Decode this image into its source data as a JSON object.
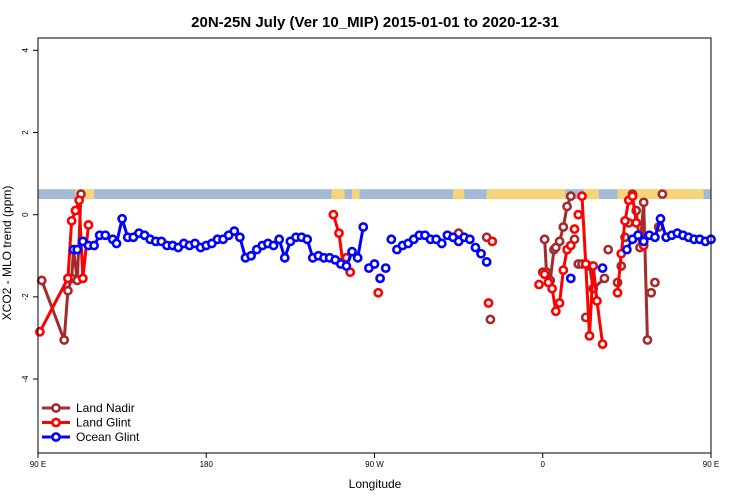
{
  "chart_data": {
    "type": "line",
    "title": "20N-25N July (Ver 10_MIP)   2015-01-01 to 2020-12-31",
    "xlabel": "Longitude",
    "ylabel": "XCO2 - MLO trend (ppm)",
    "xlim": [
      90,
      450
    ],
    "ylim": [
      -5.8,
      4.3
    ],
    "x_ticks": [
      {
        "value": 90,
        "label": "90 E"
      },
      {
        "value": 180,
        "label": "180"
      },
      {
        "value": 270,
        "label": "90 W"
      },
      {
        "value": 360,
        "label": "0"
      },
      {
        "value": 450,
        "label": "90 E"
      }
    ],
    "y_ticks": [
      {
        "value": 4,
        "label": "4"
      },
      {
        "value": 2,
        "label": "2"
      },
      {
        "value": 0,
        "label": "0"
      },
      {
        "value": -2,
        "label": "-2"
      },
      {
        "value": -4,
        "label": "-4"
      }
    ],
    "land_band": {
      "y_min": 0.38,
      "y_max": 0.62,
      "ocean_color": "#a4b9d8",
      "land_color": "#f6d57a"
    },
    "land_segments": [
      [
        110,
        120
      ],
      [
        247,
        254
      ],
      [
        258,
        262
      ],
      [
        312,
        318
      ],
      [
        330,
        372
      ],
      [
        382,
        390
      ],
      [
        400,
        446
      ]
    ],
    "legend": {
      "position": "bottom-left"
    },
    "series": [
      {
        "name": "Land Nadir",
        "color": "#a52a2a",
        "x": [
          92,
          104,
          106,
          108,
          109,
          111,
          113,
          315,
          330,
          332,
          360,
          361,
          362,
          364,
          366,
          367,
          369,
          371,
          373,
          375,
          377,
          379,
          381,
          383,
          385,
          387,
          393,
          395,
          400,
          402,
          404,
          406,
          408,
          410,
          412,
          414,
          416,
          418,
          420,
          422,
          424
        ],
        "y": [
          -1.6,
          -3.05,
          -1.85,
          -1.55,
          -0.85,
          -1.6,
          0.5,
          -0.45,
          -0.55,
          -2.55,
          -1.4,
          -0.6,
          -1.4,
          -1.6,
          -0.85,
          -0.8,
          -0.65,
          -0.3,
          0.2,
          0.45,
          -0.6,
          -1.2,
          -1.2,
          -2.5,
          -1.25,
          -1.8,
          -1.55,
          -0.85,
          -1.65,
          -1.25,
          -0.55,
          -0.2,
          0.5,
          0.1,
          -0.8,
          0.3,
          -3.05,
          -1.9,
          -1.65,
          -0.3,
          0.5
        ],
        "segments": [
          [
            0,
            6
          ],
          [
            11,
            19
          ],
          [
            24,
            26
          ],
          [
            33,
            36
          ]
        ]
      },
      {
        "name": "Land Glint",
        "color": "#ff0000",
        "x": [
          91,
          106,
          108,
          110,
          112,
          114,
          117,
          248,
          251,
          253,
          255,
          257,
          272,
          331,
          333,
          358,
          361,
          363,
          365,
          367,
          369,
          371,
          373,
          375,
          377,
          379,
          381,
          383,
          385,
          387,
          389,
          392,
          400,
          402,
          404,
          406,
          408,
          410,
          412,
          414
        ],
        "y": [
          -2.85,
          -1.55,
          -0.15,
          0.1,
          0.35,
          -1.55,
          -0.25,
          0.0,
          -0.45,
          -1.15,
          -1.05,
          -1.4,
          -1.9,
          -2.15,
          -0.65,
          -1.7,
          -1.45,
          -1.65,
          -1.8,
          -2.35,
          -2.15,
          -1.35,
          -0.85,
          -0.75,
          -0.35,
          0.0,
          0.45,
          -1.2,
          -2.95,
          -1.25,
          -2.1,
          -3.15,
          -1.9,
          -0.95,
          -0.15,
          0.35,
          0.45,
          -0.2,
          -0.5,
          -0.75
        ],
        "segments": [
          [
            0,
            6
          ],
          [
            7,
            11
          ],
          [
            16,
            22
          ],
          [
            26,
            31
          ],
          [
            32,
            37
          ]
        ]
      },
      {
        "name": "Ocean Glint",
        "color": "#0000ff",
        "x": [
          109,
          111,
          114,
          117,
          120,
          123,
          126,
          130,
          132,
          135,
          138,
          141,
          144,
          147,
          150,
          153,
          156,
          159,
          162,
          165,
          168,
          171,
          174,
          177,
          180,
          183,
          186,
          189,
          192,
          195,
          198,
          201,
          204,
          207,
          210,
          213,
          216,
          219,
          222,
          225,
          228,
          231,
          234,
          237,
          240,
          243,
          246,
          249,
          252,
          255,
          258,
          261,
          264,
          267,
          270,
          273,
          276,
          279,
          282,
          285,
          288,
          291,
          294,
          297,
          300,
          303,
          306,
          309,
          312,
          315,
          318,
          321,
          324,
          327,
          330,
          375,
          392,
          405,
          408,
          411,
          414,
          417,
          420,
          423,
          426,
          429,
          432,
          435,
          438,
          441,
          444,
          447,
          450
        ],
        "y": [
          -0.85,
          -0.85,
          -0.65,
          -0.75,
          -0.75,
          -0.5,
          -0.5,
          -0.6,
          -0.7,
          -0.1,
          -0.55,
          -0.55,
          -0.45,
          -0.5,
          -0.6,
          -0.65,
          -0.65,
          -0.75,
          -0.75,
          -0.8,
          -0.7,
          -0.75,
          -0.7,
          -0.8,
          -0.75,
          -0.7,
          -0.6,
          -0.6,
          -0.5,
          -0.4,
          -0.55,
          -1.05,
          -1.0,
          -0.85,
          -0.75,
          -0.7,
          -0.75,
          -0.6,
          -1.05,
          -0.65,
          -0.55,
          -0.55,
          -0.6,
          -1.05,
          -1.0,
          -1.05,
          -1.05,
          -1.1,
          -1.2,
          -1.25,
          -0.9,
          -1.05,
          -0.3,
          -1.3,
          -1.2,
          -1.55,
          -1.3,
          -0.6,
          -0.85,
          -0.75,
          -0.7,
          -0.6,
          -0.5,
          -0.5,
          -0.6,
          -0.6,
          -0.7,
          -0.5,
          -0.55,
          -0.65,
          -0.55,
          -0.6,
          -0.8,
          -0.95,
          -1.15,
          -1.55,
          -1.3,
          -0.85,
          -0.6,
          -0.5,
          -0.65,
          -0.5,
          -0.55,
          -0.1,
          -0.55,
          -0.5,
          -0.45,
          -0.5,
          -0.55,
          -0.6,
          -0.6,
          -0.65,
          -0.6
        ],
        "segments": [
          [
            0,
            43
          ],
          [
            44,
            52
          ],
          [
            53,
            54
          ],
          [
            77,
            92
          ]
        ]
      }
    ]
  }
}
